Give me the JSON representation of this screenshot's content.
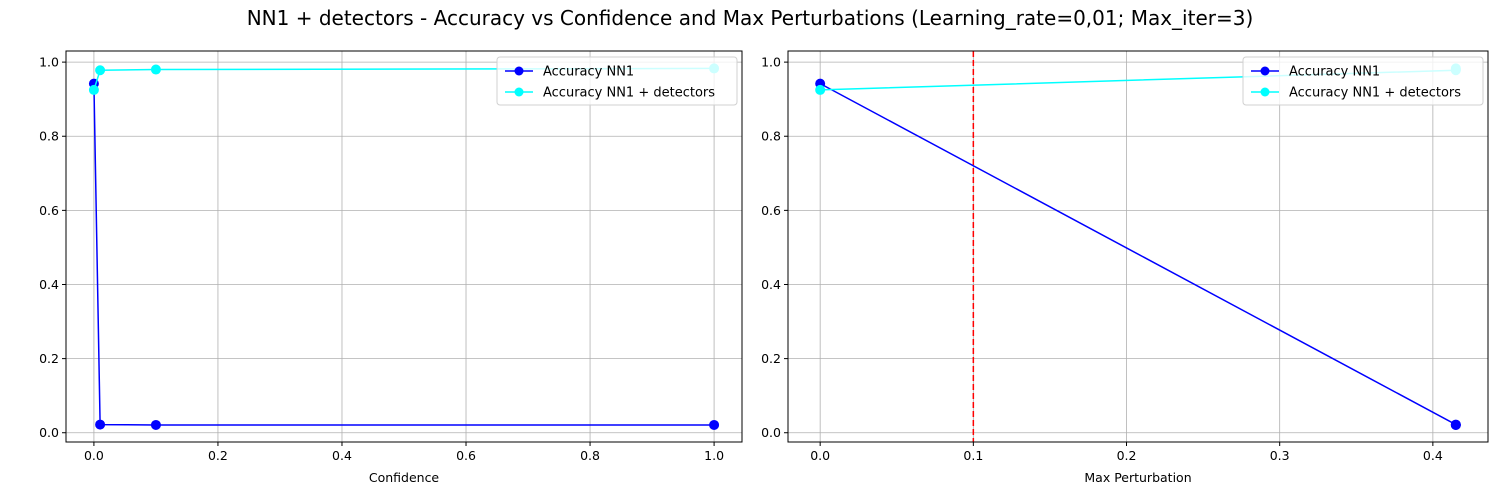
{
  "figure": {
    "title": "NN1 + detectors - Accuracy vs Confidence and Max Perturbations (Learning_rate=0,01; Max_iter=3)"
  },
  "chart_data": [
    {
      "type": "line",
      "xlabel": "Confidence",
      "ylabel": "",
      "xlim": [
        -0.045,
        1.045
      ],
      "ylim": [
        -0.025,
        1.03
      ],
      "xticks": [
        0.0,
        0.2,
        0.4,
        0.6,
        0.8,
        1.0
      ],
      "xtick_labels": [
        "0.0",
        "0.2",
        "0.4",
        "0.6",
        "0.8",
        "1.0"
      ],
      "yticks": [
        0.0,
        0.2,
        0.4,
        0.6,
        0.8,
        1.0
      ],
      "ytick_labels": [
        "0.0",
        "0.2",
        "0.4",
        "0.6",
        "0.8",
        "1.0"
      ],
      "grid": true,
      "legend": "top-right",
      "series": [
        {
          "name": "Accuracy NN1",
          "color": "#0000ff",
          "marker": "circle",
          "x": [
            0.0,
            0.01,
            0.1,
            1.0
          ],
          "y": [
            0.942,
            0.022,
            0.021,
            0.021
          ]
        },
        {
          "name": "Accuracy NN1 + detectors",
          "color": "#00ffff",
          "marker": "circle",
          "x": [
            0.0,
            0.01,
            0.1,
            1.0
          ],
          "y": [
            0.925,
            0.978,
            0.98,
            0.983
          ]
        }
      ],
      "vlines": []
    },
    {
      "type": "line",
      "xlabel": "Max Perturbation",
      "ylabel": "",
      "xlim": [
        -0.021,
        0.436
      ],
      "ylim": [
        -0.025,
        1.03
      ],
      "xticks": [
        0.0,
        0.1,
        0.2,
        0.3,
        0.4
      ],
      "xtick_labels": [
        "0.0",
        "0.1",
        "0.2",
        "0.3",
        "0.4"
      ],
      "yticks": [
        0.0,
        0.2,
        0.4,
        0.6,
        0.8,
        1.0
      ],
      "ytick_labels": [
        "0.0",
        "0.2",
        "0.4",
        "0.6",
        "0.8",
        "1.0"
      ],
      "grid": true,
      "legend": "top-right",
      "series": [
        {
          "name": "Accuracy NN1",
          "color": "#0000ff",
          "marker": "circle",
          "x": [
            0.0,
            0.415,
            0.415,
            0.415
          ],
          "y": [
            0.942,
            0.022,
            0.021,
            0.021
          ]
        },
        {
          "name": "Accuracy NN1 + detectors",
          "color": "#00ffff",
          "marker": "circle",
          "x": [
            0.0,
            0.415,
            0.415,
            0.415
          ],
          "y": [
            0.925,
            0.978,
            0.98,
            0.983
          ]
        }
      ],
      "vlines": [
        {
          "x": 0.1,
          "color": "#ff0000",
          "style": "dashed"
        }
      ]
    }
  ]
}
